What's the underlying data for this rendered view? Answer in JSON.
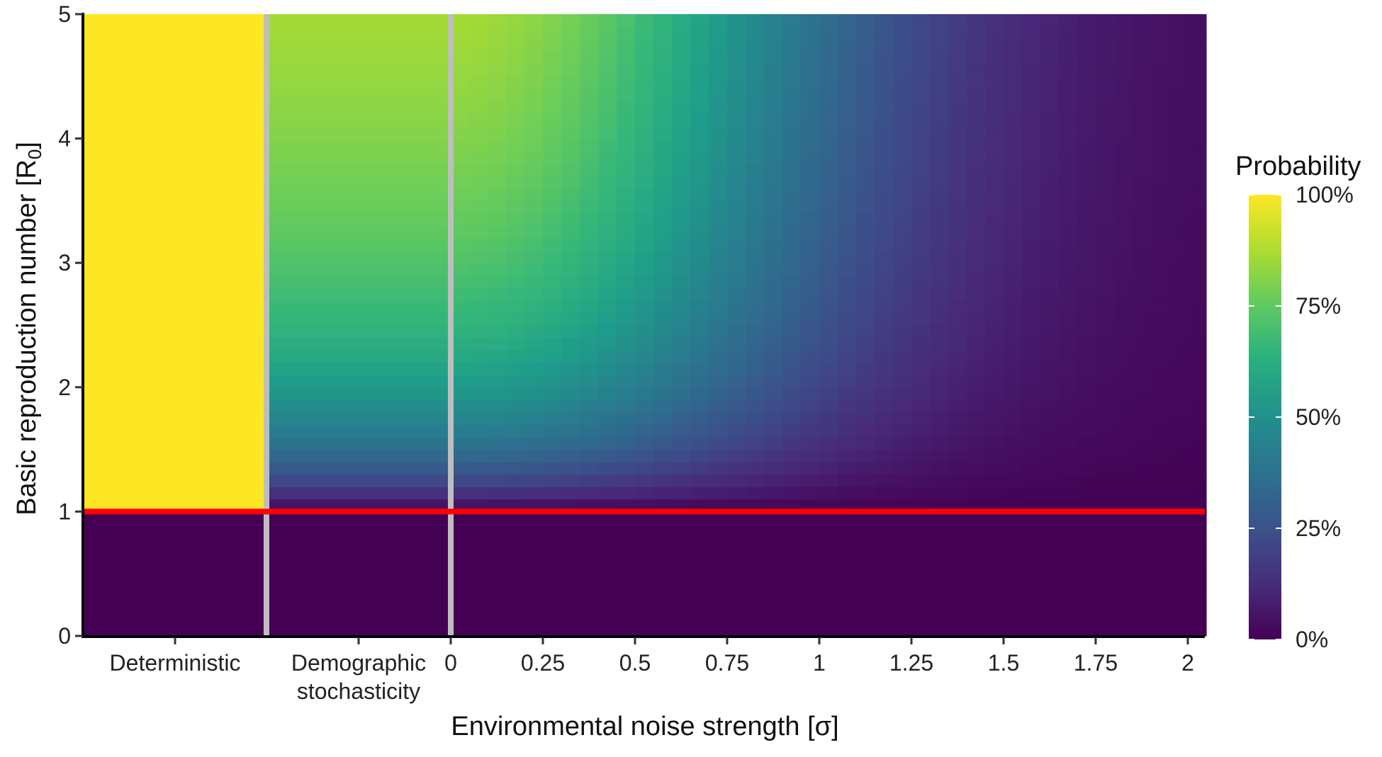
{
  "chart_data": {
    "type": "heatmap",
    "xlabel": "Environmental noise strength [σ]",
    "ylabel_main": "Basic reproduction number  [R",
    "ylabel_sub": "0",
    "ylabel_end": "]",
    "ylim": [
      0,
      5
    ],
    "y_ticks": [
      "0",
      "1",
      "2",
      "3",
      "4",
      "5"
    ],
    "x_category_labels": [
      {
        "line1": "Deterministic",
        "line2": ""
      },
      {
        "line1": "Demographic",
        "line2": "stochasticity"
      }
    ],
    "x_ticks": [
      "0",
      "0.25",
      "0.5",
      "0.75",
      "1",
      "1.25",
      "1.5",
      "1.75",
      "2"
    ],
    "sigma_range": [
      0,
      2.05
    ],
    "threshold_R0": 1,
    "threshold_color": "#ff0000",
    "separator_color": "#bebebe",
    "legend": {
      "title": "Probability",
      "labels": [
        "100%",
        "75%",
        "50%",
        "25%",
        "0%"
      ],
      "values": [
        1.0,
        0.75,
        0.5,
        0.25,
        0.0
      ],
      "placement": "right"
    },
    "colormap": "viridis",
    "panels": [
      {
        "name": "deterministic",
        "rule": "probability 100% for R0 > 1, 0% for R0 < 1"
      },
      {
        "name": "demographic-stochasticity",
        "rule": "probability approx 1 - 1/R0 for R0 > 1, 0% for R0 < 1"
      },
      {
        "name": "environmental-noise",
        "rule": "probability falls with increasing σ; near 5% at σ = 2, R0 = 5"
      }
    ]
  }
}
